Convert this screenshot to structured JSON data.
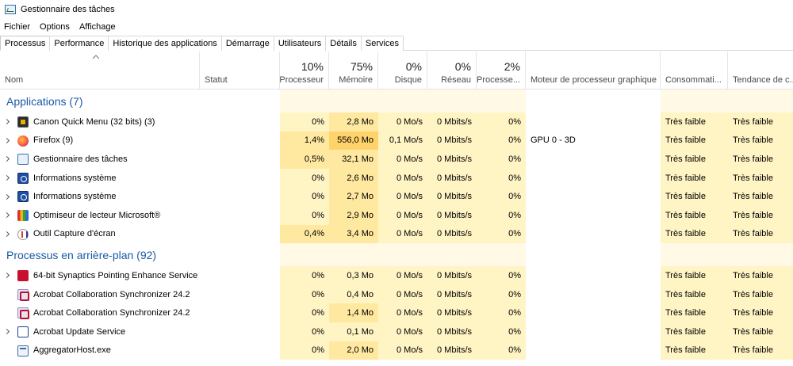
{
  "window": {
    "title": "Gestionnaire des tâches"
  },
  "menu": [
    "Fichier",
    "Options",
    "Affichage"
  ],
  "tabs": [
    "Processus",
    "Performance",
    "Historique des applications",
    "Démarrage",
    "Utilisateurs",
    "Détails",
    "Services"
  ],
  "active_tab": "Processus",
  "columns": {
    "name": "Nom",
    "status": "Statut",
    "cpu": {
      "pct": "10%",
      "label": "Processeur"
    },
    "memory": {
      "pct": "75%",
      "label": "Mémoire"
    },
    "disk": {
      "pct": "0%",
      "label": "Disque"
    },
    "network": {
      "pct": "0%",
      "label": "Réseau"
    },
    "gpu": {
      "pct": "2%",
      "label": "Processe..."
    },
    "gpu_engine": "Moteur de processeur graphique",
    "power": "Consommati...",
    "power_trend": "Tendance de c..."
  },
  "groups": {
    "apps": "Applications (7)",
    "background": "Processus en arrière-plan (92)"
  },
  "apps": [
    {
      "name": "Canon Quick Menu (32 bits) (3)",
      "icon": "canon-icon",
      "cpu": "0%",
      "mem": "2,8 Mo",
      "disk": "0 Mo/s",
      "net": "0 Mbits/s",
      "gpu": "0%",
      "engine": "",
      "power": "Très faible",
      "trend": "Très faible"
    },
    {
      "name": "Firefox (9)",
      "icon": "firefox-icon",
      "cpu": "1,4%",
      "mem": "556,0 Mo",
      "disk": "0,1 Mo/s",
      "net": "0 Mbits/s",
      "gpu": "0%",
      "engine": "GPU 0 - 3D",
      "power": "Très faible",
      "trend": "Très faible"
    },
    {
      "name": "Gestionnaire des tâches",
      "icon": "task-manager-icon",
      "cpu": "0,5%",
      "mem": "32,1 Mo",
      "disk": "0 Mo/s",
      "net": "0 Mbits/s",
      "gpu": "0%",
      "engine": "",
      "power": "Très faible",
      "trend": "Très faible"
    },
    {
      "name": "Informations système",
      "icon": "system-info-icon",
      "cpu": "0%",
      "mem": "2,6 Mo",
      "disk": "0 Mo/s",
      "net": "0 Mbits/s",
      "gpu": "0%",
      "engine": "",
      "power": "Très faible",
      "trend": "Très faible"
    },
    {
      "name": "Informations système",
      "icon": "system-info-icon",
      "cpu": "0%",
      "mem": "2,7 Mo",
      "disk": "0 Mo/s",
      "net": "0 Mbits/s",
      "gpu": "0%",
      "engine": "",
      "power": "Très faible",
      "trend": "Très faible"
    },
    {
      "name": "Optimiseur de lecteur Microsoft®",
      "icon": "drive-optimizer-icon",
      "cpu": "0%",
      "mem": "2,9 Mo",
      "disk": "0 Mo/s",
      "net": "0 Mbits/s",
      "gpu": "0%",
      "engine": "",
      "power": "Très faible",
      "trend": "Très faible"
    },
    {
      "name": "Outil Capture d'écran",
      "icon": "snipping-tool-icon",
      "cpu": "0,4%",
      "mem": "3,4 Mo",
      "disk": "0 Mo/s",
      "net": "0 Mbits/s",
      "gpu": "0%",
      "engine": "",
      "power": "Très faible",
      "trend": "Très faible"
    }
  ],
  "background": [
    {
      "name": "64-bit Synaptics Pointing Enhance Service",
      "icon": "synaptics-icon",
      "expandable": true,
      "cpu": "0%",
      "mem": "0,3 Mo",
      "disk": "0 Mo/s",
      "net": "0 Mbits/s",
      "gpu": "0%",
      "engine": "",
      "power": "Très faible",
      "trend": "Très faible"
    },
    {
      "name": "Acrobat Collaboration Synchronizer 24.2",
      "icon": "acrobat-icon",
      "expandable": false,
      "cpu": "0%",
      "mem": "0,4 Mo",
      "disk": "0 Mo/s",
      "net": "0 Mbits/s",
      "gpu": "0%",
      "engine": "",
      "power": "Très faible",
      "trend": "Très faible"
    },
    {
      "name": "Acrobat Collaboration Synchronizer 24.2",
      "icon": "acrobat-icon",
      "expandable": false,
      "cpu": "0%",
      "mem": "1,4 Mo",
      "disk": "0 Mo/s",
      "net": "0 Mbits/s",
      "gpu": "0%",
      "engine": "",
      "power": "Très faible",
      "trend": "Très faible"
    },
    {
      "name": "Acrobat Update Service",
      "icon": "acrobat-update-icon",
      "expandable": true,
      "cpu": "0%",
      "mem": "0,1 Mo",
      "disk": "0 Mo/s",
      "net": "0 Mbits/s",
      "gpu": "0%",
      "engine": "",
      "power": "Très faible",
      "trend": "Très faible"
    },
    {
      "name": "AggregatorHost.exe",
      "icon": "aggregator-host-icon",
      "expandable": false,
      "cpu": "0%",
      "mem": "2,0 Mo",
      "disk": "0 Mo/s",
      "net": "0 Mbits/s",
      "gpu": "0%",
      "engine": "",
      "power": "Très faible",
      "trend": "Très faible"
    }
  ]
}
